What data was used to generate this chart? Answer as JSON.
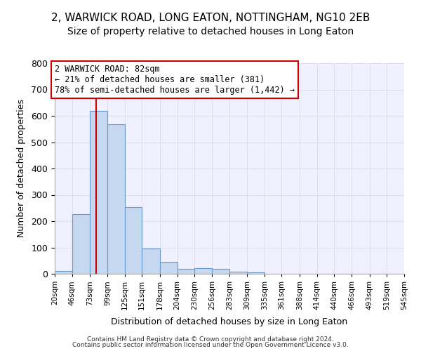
{
  "title1": "2, WARWICK ROAD, LONG EATON, NOTTINGHAM, NG10 2EB",
  "title2": "Size of property relative to detached houses in Long Eaton",
  "xlabel": "Distribution of detached houses by size in Long Eaton",
  "ylabel": "Number of detached properties",
  "bin_edges": [
    20,
    46,
    73,
    99,
    125,
    151,
    178,
    204,
    230,
    256,
    283,
    309,
    335,
    361,
    388,
    414,
    440,
    466,
    493,
    519,
    545
  ],
  "bar_heights": [
    10,
    228,
    618,
    568,
    253,
    95,
    46,
    20,
    22,
    20,
    8,
    5,
    0,
    0,
    0,
    0,
    0,
    0,
    0,
    0
  ],
  "bar_color": "#c5d8f0",
  "bar_edge_color": "#6699cc",
  "property_size": 82,
  "red_line_color": "#cc0000",
  "annotation_text": "2 WARWICK ROAD: 82sqm\n← 21% of detached houses are smaller (381)\n78% of semi-detached houses are larger (1,442) →",
  "annotation_box_color": "#ffffff",
  "annotation_box_edge_color": "#cc0000",
  "ylim": [
    0,
    800
  ],
  "yticks": [
    0,
    100,
    200,
    300,
    400,
    500,
    600,
    700,
    800
  ],
  "grid_color": "#ddddee",
  "bg_color": "#f0f0ff",
  "footer1": "Contains HM Land Registry data © Crown copyright and database right 2024.",
  "footer2": "Contains public sector information licensed under the Open Government Licence v3.0.",
  "title1_fontsize": 11,
  "title2_fontsize": 10,
  "tick_label_fontsize": 7.5,
  "annotation_fontsize": 8.5
}
